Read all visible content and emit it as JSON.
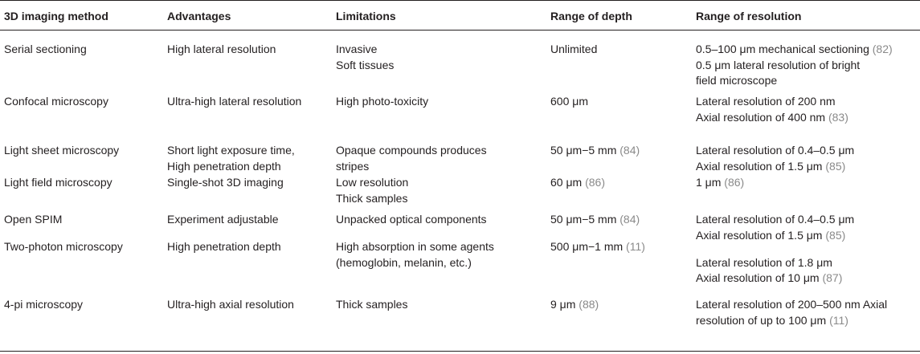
{
  "table": {
    "headers": [
      "3D imaging method",
      "Advantages",
      "Limitations",
      "Range of depth",
      "Range of resolution"
    ],
    "rows": [
      {
        "method": "Serial sectioning",
        "advantages": [
          "High lateral resolution"
        ],
        "limitations": [
          "Invasive",
          "Soft tissues"
        ],
        "depth": [
          "Unlimited"
        ],
        "resolution": [
          "0.5–100 μm mechanical sectioning (82)",
          "0.5 μm lateral resolution of bright",
          "field microscope"
        ]
      },
      {
        "method": "Confocal microscopy",
        "advantages": [
          "Ultra-high lateral resolution"
        ],
        "limitations": [
          "High photo-toxicity"
        ],
        "depth": [
          "600 μm"
        ],
        "resolution": [
          "Lateral resolution of 200 nm",
          "Axial resolution of 400 nm (83)"
        ]
      },
      {
        "method": "Light sheet microscopy",
        "advantages": [
          "Short light exposure time,",
          "High penetration depth"
        ],
        "limitations": [
          "Opaque compounds produces",
          "stripes"
        ],
        "depth": [
          "50 μm−5 mm (84)"
        ],
        "resolution": [
          "Lateral resolution of 0.4–0.5 μm",
          "Axial resolution of 1.5 μm (85)"
        ]
      },
      {
        "method": "Light field microscopy",
        "advantages": [
          "Single-shot 3D imaging"
        ],
        "limitations": [
          "Low resolution",
          "Thick samples"
        ],
        "depth": [
          "60 μm (86)"
        ],
        "resolution": [
          "1 μm (86)"
        ]
      },
      {
        "method": "Open SPIM",
        "advantages": [
          "Experiment adjustable"
        ],
        "limitations": [
          "Unpacked optical components"
        ],
        "depth": [
          "50 μm−5 mm (84)"
        ],
        "resolution": [
          "Lateral resolution of 0.4–0.5 μm",
          "Axial resolution of 1.5 μm (85)"
        ]
      },
      {
        "method": "Two-photon microscopy",
        "advantages": [
          "High penetration depth"
        ],
        "limitations": [
          "High absorption in some agents",
          "(hemoglobin, melanin, etc.)"
        ],
        "depth": [
          "500 μm−1 mm (11)"
        ],
        "resolution": [
          "",
          "Lateral resolution of 1.8 μm",
          "Axial resolution of 10 μm (87)"
        ]
      },
      {
        "method": "4-pi microscopy",
        "advantages": [
          "Ultra-high axial resolution"
        ],
        "limitations": [
          "Thick samples"
        ],
        "depth": [
          "9 μm (88)"
        ],
        "resolution": [
          "Lateral resolution of 200–500 nm Axial",
          "resolution of up to 100 μm (11)"
        ]
      }
    ]
  },
  "colors": {
    "text": "#231f20",
    "citation": "#8a8a8a",
    "rule": "#231f20"
  }
}
